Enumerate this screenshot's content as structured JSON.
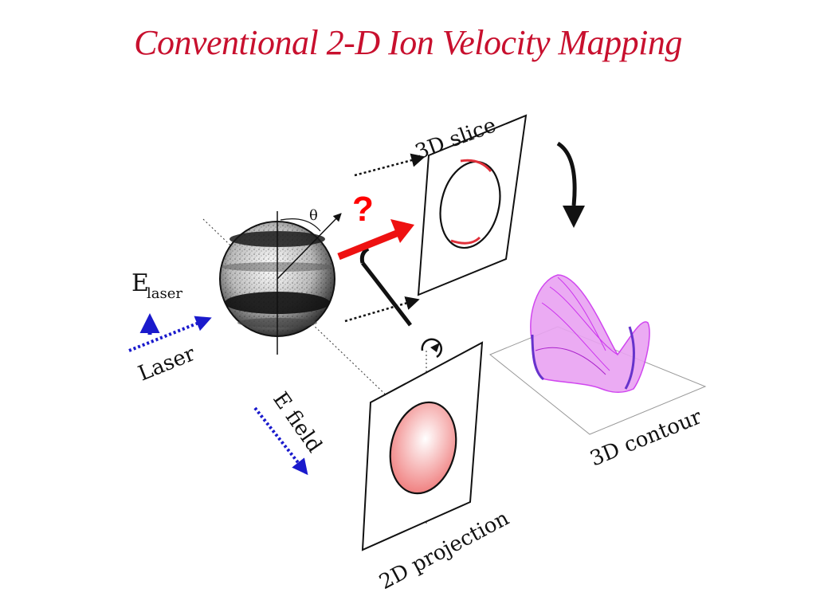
{
  "slide": {
    "title": "Conventional 2-D Ion Velocity Mapping"
  },
  "diagram": {
    "labels": {
      "slice": "3D slice",
      "projection": "2D projection",
      "contour": "3D contour",
      "laser": "Laser",
      "efield": "E field",
      "elaser_main": "E",
      "elaser_sub": "laser",
      "theta": "θ",
      "question": "?"
    },
    "colors": {
      "title": "#c8102e",
      "question": "#ff0000",
      "red_arrow": "#ee1111",
      "blue_arrow": "#1a1acc",
      "contour_surface": "#dd33ee",
      "ring_fill": "#f08080"
    }
  }
}
